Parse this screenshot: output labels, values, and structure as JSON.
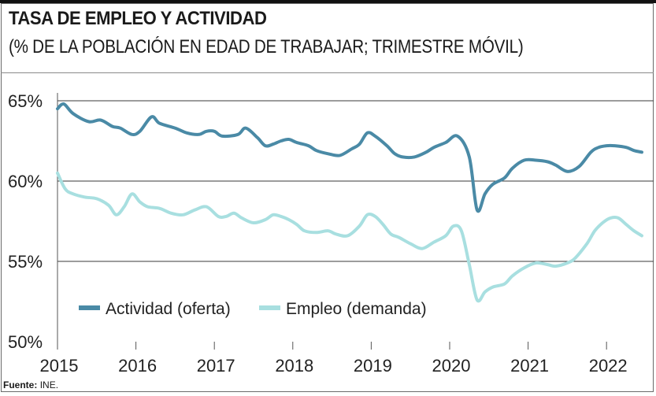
{
  "header": {
    "title": "TASA DE EMPLEO Y ACTIVIDAD",
    "subtitle": "(% DE LA POBLACIÓN EN EDAD DE TRABAJAR; TRIMESTRE MÓVIL)"
  },
  "source": {
    "label": "Fuente:",
    "text": "INE."
  },
  "colors": {
    "actividad": "#4a8aa6",
    "empleo": "#a8dfe0",
    "grid": "#3a3a3a",
    "axis": "#555555"
  },
  "chart_data": {
    "type": "line",
    "title": "TASA DE EMPLEO Y ACTIVIDAD",
    "subtitle": "(% DE LA POBLACIÓN EN EDAD DE TRABAJAR; TRIMESTRE MÓVIL)",
    "xlabel": "",
    "ylabel": "",
    "xlim": [
      2015.0,
      2022.45
    ],
    "ylim": [
      50,
      65
    ],
    "yticks": [
      65,
      60,
      55,
      50
    ],
    "ytick_labels": [
      "65%",
      "60%",
      "55%",
      "50%"
    ],
    "xticks": [
      2015,
      2016,
      2017,
      2018,
      2019,
      2020,
      2021,
      2022
    ],
    "xtick_labels": [
      "2015",
      "2016",
      "2017",
      "2018",
      "2019",
      "2020",
      "2021",
      "2022"
    ],
    "grid": true,
    "legend": "bottom-left",
    "series": [
      {
        "name": "Actividad (oferta)",
        "x": [
          2015.0,
          2015.08,
          2015.2,
          2015.4,
          2015.55,
          2015.7,
          2015.8,
          2015.95,
          2016.05,
          2016.2,
          2016.3,
          2016.5,
          2016.65,
          2016.8,
          2016.9,
          2017.0,
          2017.1,
          2017.3,
          2017.4,
          2017.55,
          2017.65,
          2017.75,
          2017.85,
          2017.95,
          2018.05,
          2018.2,
          2018.3,
          2018.45,
          2018.6,
          2018.75,
          2018.85,
          2018.95,
          2019.05,
          2019.2,
          2019.3,
          2019.4,
          2019.55,
          2019.7,
          2019.8,
          2019.95,
          2020.1,
          2020.25,
          2020.35,
          2020.45,
          2020.55,
          2020.7,
          2020.8,
          2020.95,
          2021.1,
          2021.25,
          2021.35,
          2021.5,
          2021.65,
          2021.8,
          2021.9,
          2022.0,
          2022.1,
          2022.25,
          2022.35,
          2022.45
        ],
        "values": [
          64.5,
          64.8,
          64.2,
          63.7,
          63.8,
          63.4,
          63.3,
          62.9,
          63.1,
          64.0,
          63.6,
          63.3,
          63.0,
          62.9,
          63.1,
          63.1,
          62.8,
          62.9,
          63.3,
          62.7,
          62.2,
          62.3,
          62.5,
          62.6,
          62.4,
          62.2,
          61.9,
          61.7,
          61.6,
          62.0,
          62.3,
          63.0,
          62.8,
          62.2,
          61.7,
          61.5,
          61.5,
          61.8,
          62.1,
          62.4,
          62.8,
          61.5,
          58.2,
          59.2,
          59.8,
          60.2,
          60.8,
          61.3,
          61.3,
          61.2,
          61.0,
          60.6,
          60.9,
          61.8,
          62.1,
          62.2,
          62.2,
          62.1,
          61.9,
          61.8
        ]
      },
      {
        "name": "Empleo (demanda)",
        "x": [
          2015.0,
          2015.1,
          2015.2,
          2015.35,
          2015.5,
          2015.65,
          2015.75,
          2015.85,
          2015.95,
          2016.05,
          2016.15,
          2016.3,
          2016.45,
          2016.6,
          2016.75,
          2016.9,
          2017.05,
          2017.15,
          2017.25,
          2017.35,
          2017.5,
          2017.65,
          2017.75,
          2017.85,
          2017.95,
          2018.05,
          2018.15,
          2018.3,
          2018.45,
          2018.55,
          2018.7,
          2018.85,
          2018.95,
          2019.05,
          2019.15,
          2019.25,
          2019.35,
          2019.5,
          2019.65,
          2019.8,
          2019.95,
          2020.05,
          2020.15,
          2020.25,
          2020.35,
          2020.45,
          2020.55,
          2020.7,
          2020.8,
          2020.95,
          2021.1,
          2021.25,
          2021.35,
          2021.5,
          2021.6,
          2021.75,
          2021.85,
          2021.95,
          2022.05,
          2022.15,
          2022.25,
          2022.35,
          2022.45
        ],
        "values": [
          60.5,
          59.5,
          59.2,
          59.0,
          58.9,
          58.5,
          57.9,
          58.4,
          59.2,
          58.7,
          58.4,
          58.3,
          58.0,
          57.9,
          58.2,
          58.4,
          57.8,
          57.8,
          58.0,
          57.7,
          57.4,
          57.6,
          57.9,
          57.8,
          57.6,
          57.3,
          56.9,
          56.8,
          56.9,
          56.7,
          56.6,
          57.2,
          57.9,
          57.8,
          57.3,
          56.7,
          56.5,
          56.1,
          55.8,
          56.2,
          56.6,
          57.2,
          56.9,
          54.8,
          52.6,
          53.1,
          53.4,
          53.6,
          54.1,
          54.6,
          54.9,
          54.8,
          54.7,
          54.9,
          55.2,
          56.1,
          56.9,
          57.4,
          57.7,
          57.7,
          57.3,
          56.9,
          56.6
        ]
      }
    ]
  }
}
